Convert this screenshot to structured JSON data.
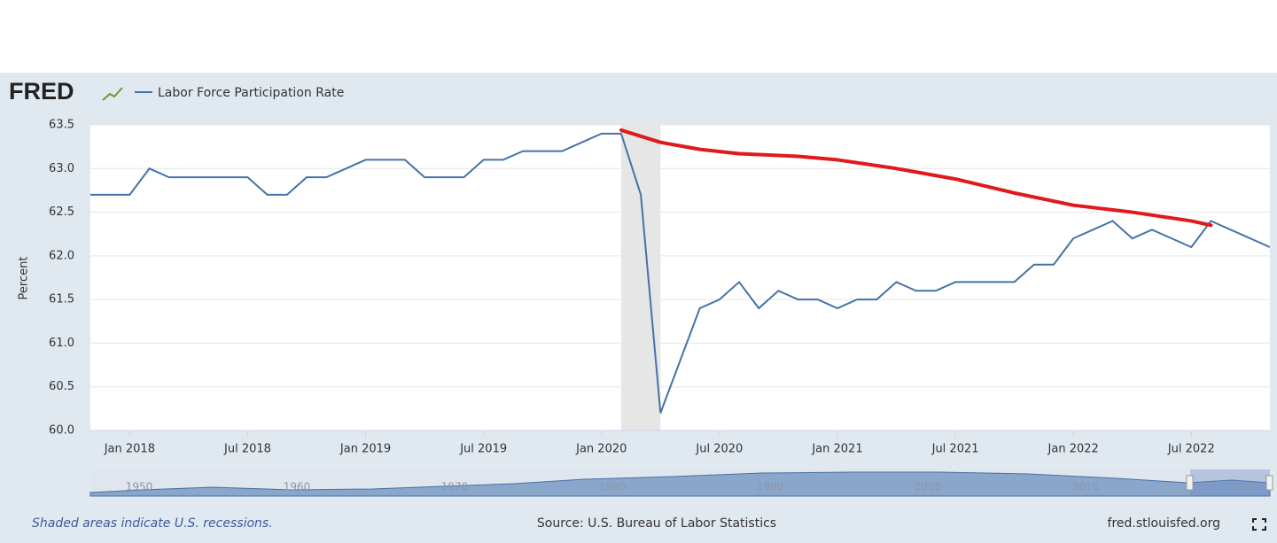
{
  "chart_data": {
    "type": "line",
    "logo": "FRED",
    "y_label": "Percent",
    "x": [
      "2017-11",
      "2017-12",
      "2018-01",
      "2018-02",
      "2018-03",
      "2018-04",
      "2018-05",
      "2018-06",
      "2018-07",
      "2018-08",
      "2018-09",
      "2018-10",
      "2018-11",
      "2018-12",
      "2019-01",
      "2019-02",
      "2019-03",
      "2019-04",
      "2019-05",
      "2019-06",
      "2019-07",
      "2019-08",
      "2019-09",
      "2019-10",
      "2019-11",
      "2019-12",
      "2020-01",
      "2020-02",
      "2020-03",
      "2020-04",
      "2020-05",
      "2020-06",
      "2020-07",
      "2020-08",
      "2020-09",
      "2020-10",
      "2020-11",
      "2020-12",
      "2021-01",
      "2021-02",
      "2021-03",
      "2021-04",
      "2021-05",
      "2021-06",
      "2021-07",
      "2021-08",
      "2021-09",
      "2021-10",
      "2021-11",
      "2021-12",
      "2022-01",
      "2022-02",
      "2022-03",
      "2022-04",
      "2022-05",
      "2022-06",
      "2022-07",
      "2022-08",
      "2022-09",
      "2022-10",
      "2022-11"
    ],
    "series": [
      {
        "name": "Labor Force Participation Rate",
        "color": "#4572a7",
        "values": [
          62.7,
          62.7,
          62.7,
          63.0,
          62.9,
          62.9,
          62.9,
          62.9,
          62.9,
          62.7,
          62.7,
          62.9,
          62.9,
          63.0,
          63.1,
          63.1,
          63.1,
          62.9,
          62.9,
          62.9,
          63.1,
          63.1,
          63.2,
          63.2,
          63.2,
          63.3,
          63.4,
          63.4,
          62.7,
          60.2,
          60.8,
          61.4,
          61.5,
          61.7,
          61.4,
          61.6,
          61.5,
          61.5,
          61.4,
          61.5,
          61.5,
          61.7,
          61.6,
          61.6,
          61.7,
          61.7,
          61.7,
          61.7,
          61.9,
          61.9,
          62.2,
          62.3,
          62.4,
          62.2,
          62.3,
          62.2,
          62.1,
          62.4,
          62.3,
          62.2,
          62.1
        ]
      }
    ],
    "xlim": [
      "2017-11",
      "2022-11"
    ],
    "xticks": [
      {
        "value": "2018-01",
        "label": "Jan 2018"
      },
      {
        "value": "2018-07",
        "label": "Jul 2018"
      },
      {
        "value": "2019-01",
        "label": "Jan 2019"
      },
      {
        "value": "2019-07",
        "label": "Jul 2019"
      },
      {
        "value": "2020-01",
        "label": "Jan 2020"
      },
      {
        "value": "2020-07",
        "label": "Jul 2020"
      },
      {
        "value": "2021-01",
        "label": "Jan 2021"
      },
      {
        "value": "2021-07",
        "label": "Jul 2021"
      },
      {
        "value": "2022-01",
        "label": "Jan 2022"
      },
      {
        "value": "2022-07",
        "label": "Jul 2022"
      }
    ],
    "ylim": [
      60,
      63.5
    ],
    "yticks": [
      {
        "value": 60,
        "label": "60.0"
      },
      60.5,
      {
        "value": 61,
        "label": "61.0"
      },
      61.5,
      {
        "value": 62,
        "label": "62.0"
      },
      62.5,
      {
        "value": 63,
        "label": "63.0"
      },
      63.5
    ],
    "grid": true,
    "recessions": [
      {
        "start": "2020-02",
        "end": "2020-04"
      }
    ],
    "recession_color": "#e6e6e6",
    "annotation_line": {
      "color": "#e0191b",
      "x": [
        "2020-02",
        "2020-04",
        "2020-06",
        "2020-08",
        "2020-11",
        "2021-01",
        "2021-04",
        "2021-07",
        "2021-10",
        "2022-01",
        "2022-04",
        "2022-07",
        "2022-08"
      ],
      "y": [
        63.44,
        63.3,
        63.22,
        63.17,
        63.14,
        63.1,
        63.0,
        62.88,
        62.72,
        62.58,
        62.5,
        62.4,
        62.35
      ]
    },
    "navigator_labels": [
      "1950",
      "1960",
      "1970",
      "1980",
      "1990",
      "2000",
      "2010",
      "2020"
    ],
    "note": "Shaded areas indicate U.S. recessions.",
    "source": "Source: U.S. Bureau of Labor Statistics",
    "site": "fred.stlouisfed.org"
  }
}
